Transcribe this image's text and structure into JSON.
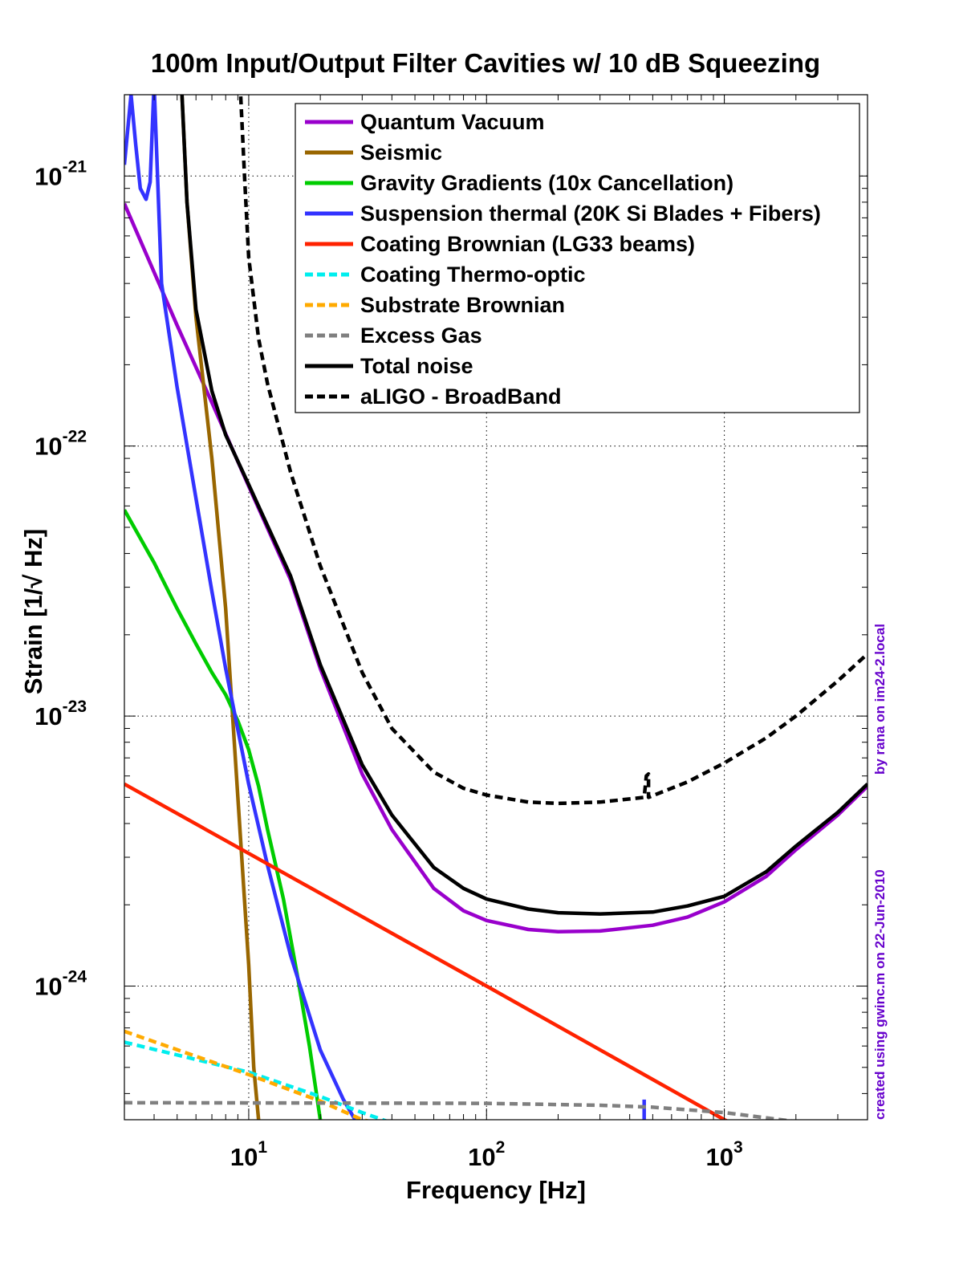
{
  "chart_data": {
    "type": "line",
    "title": "100m Input/Output Filter Cavities w/ 10 dB Squeezing",
    "xlabel": "Frequency [Hz]",
    "ylabel": "Strain [1/√ Hz]",
    "xscale": "log",
    "yscale": "log",
    "xlim": [
      3,
      4000
    ],
    "ylim": [
      3.2e-25,
      2e-21
    ],
    "grid": true,
    "legend_position": "top-right",
    "x_ticks": [
      {
        "value": 10,
        "base": "10",
        "exp": "1"
      },
      {
        "value": 100,
        "base": "10",
        "exp": "2"
      },
      {
        "value": 1000,
        "base": "10",
        "exp": "3"
      }
    ],
    "y_ticks": [
      {
        "value": 1e-24,
        "base": "10",
        "exp": "-24"
      },
      {
        "value": 1e-23,
        "base": "10",
        "exp": "-23"
      },
      {
        "value": 1e-22,
        "base": "10",
        "exp": "-22"
      },
      {
        "value": 1e-21,
        "base": "10",
        "exp": "-21"
      }
    ],
    "series": [
      {
        "name": "Quantum Vacuum",
        "color": "#9900cc",
        "dash": "solid",
        "points": [
          [
            3,
            7.9e-22
          ],
          [
            5,
            2.8e-22
          ],
          [
            7,
            1.45e-22
          ],
          [
            10,
            7.1e-23
          ],
          [
            15,
            3.2e-23
          ],
          [
            20,
            1.5e-23
          ],
          [
            30,
            6.1e-24
          ],
          [
            40,
            3.8e-24
          ],
          [
            60,
            2.3e-24
          ],
          [
            80,
            1.9e-24
          ],
          [
            100,
            1.75e-24
          ],
          [
            150,
            1.62e-24
          ],
          [
            200,
            1.59e-24
          ],
          [
            300,
            1.6e-24
          ],
          [
            500,
            1.68e-24
          ],
          [
            700,
            1.8e-24
          ],
          [
            1000,
            2.05e-24
          ],
          [
            1500,
            2.55e-24
          ],
          [
            2000,
            3.2e-24
          ],
          [
            3000,
            4.3e-24
          ],
          [
            4000,
            5.5e-24
          ]
        ]
      },
      {
        "name": "Seismic",
        "color": "#996600",
        "dash": "solid",
        "points": [
          [
            5.2,
            2.3e-21
          ],
          [
            5.5,
            8e-22
          ],
          [
            6,
            3e-22
          ],
          [
            7,
            9e-23
          ],
          [
            8,
            2.5e-23
          ],
          [
            9,
            5e-24
          ],
          [
            10,
            1.2e-24
          ],
          [
            10.5,
            5e-25
          ],
          [
            11,
            3.2e-25
          ]
        ]
      },
      {
        "name": "Gravity Gradients (10x Cancellation)",
        "color": "#00cc00",
        "dash": "solid",
        "points": [
          [
            3,
            5.8e-23
          ],
          [
            4,
            3.7e-23
          ],
          [
            5,
            2.5e-23
          ],
          [
            6,
            1.85e-23
          ],
          [
            7,
            1.45e-23
          ],
          [
            8,
            1.2e-23
          ],
          [
            9,
            9.6e-24
          ],
          [
            10,
            7.5e-24
          ],
          [
            11,
            5.5e-24
          ],
          [
            12,
            3.8e-24
          ],
          [
            14,
            2.1e-24
          ],
          [
            16,
            1.1e-24
          ],
          [
            18,
            6e-25
          ],
          [
            20,
            3.2e-25
          ]
        ]
      },
      {
        "name": "Suspension thermal (20K Si Blades + Fibers)",
        "color": "#3333ff",
        "dash": "solid",
        "points": [
          [
            3,
            1.1e-21
          ],
          [
            3.2,
            2e-21
          ],
          [
            3.35,
            1.3e-21
          ],
          [
            3.5,
            9e-22
          ],
          [
            3.7,
            8.2e-22
          ],
          [
            3.85,
            9.5e-22
          ],
          [
            4,
            2.2e-21
          ],
          [
            4.3,
            4e-22
          ],
          [
            5,
            1.65e-22
          ],
          [
            6,
            6.4e-23
          ],
          [
            7,
            2.9e-23
          ],
          [
            8,
            1.5e-23
          ],
          [
            10,
            5.6e-24
          ],
          [
            12,
            2.8e-24
          ],
          [
            15,
            1.3e-24
          ],
          [
            20,
            5.8e-25
          ],
          [
            25,
            3.8e-25
          ],
          [
            28,
            3.2e-25
          ]
        ],
        "extra_segments": [
          [
            [
              460,
              3.2e-25
            ],
            [
              460,
              3.8e-25
            ]
          ]
        ]
      },
      {
        "name": "Coating Brownian (LG33 beams)",
        "color": "#ff2200",
        "dash": "solid",
        "points": [
          [
            3,
            5.6e-24
          ],
          [
            10,
            3.1e-24
          ],
          [
            100,
            1e-24
          ],
          [
            1000,
            3.2e-25
          ],
          [
            1200,
            2.95e-25
          ]
        ]
      },
      {
        "name": "Coating Thermo-optic",
        "color": "#00eeee",
        "dash": "dashed",
        "points": [
          [
            3,
            6.2e-25
          ],
          [
            10,
            4.8e-25
          ],
          [
            20,
            3.9e-25
          ],
          [
            30,
            3.4e-25
          ],
          [
            45,
            3e-25
          ]
        ]
      },
      {
        "name": "Substrate Brownian",
        "color": "#ffaa00",
        "dash": "dashed",
        "points": [
          [
            3,
            6.8e-25
          ],
          [
            10,
            4.7e-25
          ],
          [
            20,
            3.75e-25
          ],
          [
            30,
            3.2e-25
          ],
          [
            45,
            2.95e-25
          ]
        ]
      },
      {
        "name": "Excess Gas",
        "color": "#808080",
        "dash": "dashed",
        "points": [
          [
            3,
            3.7e-25
          ],
          [
            100,
            3.68e-25
          ],
          [
            300,
            3.62e-25
          ],
          [
            500,
            3.56e-25
          ],
          [
            1000,
            3.4e-25
          ],
          [
            2000,
            3.15e-25
          ],
          [
            2500,
            3e-25
          ]
        ]
      },
      {
        "name": "Total noise",
        "color": "#000000",
        "dash": "solid",
        "points": [
          [
            5.2,
            2.3e-21
          ],
          [
            5.5,
            8e-22
          ],
          [
            6,
            3.2e-22
          ],
          [
            7,
            1.6e-22
          ],
          [
            8,
            1.1e-22
          ],
          [
            10,
            7.2e-23
          ],
          [
            15,
            3.3e-23
          ],
          [
            20,
            1.55e-23
          ],
          [
            30,
            6.6e-24
          ],
          [
            40,
            4.3e-24
          ],
          [
            60,
            2.75e-24
          ],
          [
            80,
            2.3e-24
          ],
          [
            100,
            2.1e-24
          ],
          [
            150,
            1.93e-24
          ],
          [
            200,
            1.87e-24
          ],
          [
            300,
            1.85e-24
          ],
          [
            500,
            1.88e-24
          ],
          [
            700,
            1.98e-24
          ],
          [
            1000,
            2.15e-24
          ],
          [
            1500,
            2.65e-24
          ],
          [
            2000,
            3.3e-24
          ],
          [
            3000,
            4.4e-24
          ],
          [
            4000,
            5.6e-24
          ]
        ]
      },
      {
        "name": "aLIGO - BroadBand",
        "color": "#000000",
        "dash": "dashed",
        "points": [
          [
            9.2,
            2.2e-21
          ],
          [
            9.6,
            1e-21
          ],
          [
            10,
            5e-22
          ],
          [
            11,
            2.5e-22
          ],
          [
            12,
            1.7e-22
          ],
          [
            15,
            8e-23
          ],
          [
            20,
            3.6e-23
          ],
          [
            30,
            1.45e-23
          ],
          [
            40,
            9e-24
          ],
          [
            60,
            6.2e-24
          ],
          [
            80,
            5.4e-24
          ],
          [
            100,
            5.1e-24
          ],
          [
            150,
            4.8e-24
          ],
          [
            200,
            4.75e-24
          ],
          [
            300,
            4.8e-24
          ],
          [
            460,
            5e-24
          ],
          [
            470,
            6e-24
          ],
          [
            480,
            6.1e-24
          ],
          [
            480,
            5e-24
          ],
          [
            700,
            5.7e-24
          ],
          [
            1000,
            6.7e-24
          ],
          [
            1500,
            8.3e-24
          ],
          [
            2000,
            1e-23
          ],
          [
            3000,
            1.35e-23
          ],
          [
            4000,
            1.7e-23
          ]
        ]
      }
    ]
  },
  "side_text": {
    "line1": "by rana on im24-2.local",
    "line2": "created using gwinc.m on 22-Jun-2010",
    "color": "#6600cc"
  }
}
